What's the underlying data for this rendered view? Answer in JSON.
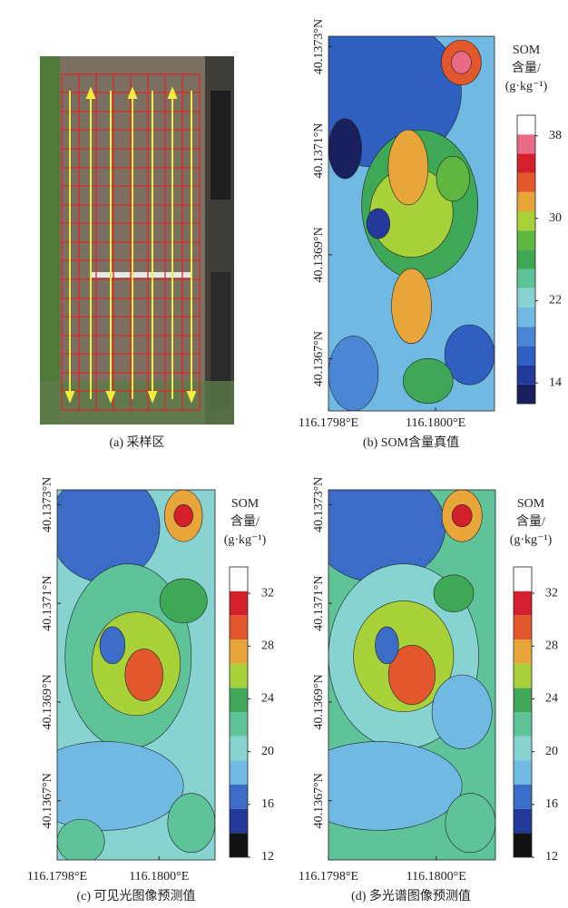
{
  "panels": {
    "a": {
      "caption": "(a) 采样区"
    },
    "b": {
      "caption": "(b) SOM含量真值",
      "xlim": [
        116.1798,
        116.18011
      ],
      "ylim": [
        40.1366,
        40.13732
      ],
      "xticks": [
        {
          "value": 116.1798,
          "label": "116.1798°E"
        },
        {
          "value": 116.18,
          "label": "116.1800°E"
        }
      ],
      "yticks": [
        {
          "value": 40.1367,
          "label": "40.1367°N"
        },
        {
          "value": 40.1369,
          "label": "40.1369°N"
        },
        {
          "value": 40.1371,
          "label": "40.1371°N"
        },
        {
          "value": 40.1373,
          "label": "40.1373°N"
        }
      ],
      "colorbar_title": [
        "SOM",
        "含量/",
        "(g·kg⁻¹)"
      ],
      "clim": [
        12,
        40
      ],
      "cticks": [
        14,
        22,
        30,
        38
      ],
      "colors": [
        "#1a1f5e",
        "#233a9a",
        "#2f5fc0",
        "#4a86d4",
        "#6fb9e2",
        "#86d3d2",
        "#5fc39a",
        "#3ea856",
        "#5fb640",
        "#a9d13a",
        "#e8a63a",
        "#e2572c",
        "#d3202c",
        "#e96b86",
        "#ffffff"
      ]
    },
    "c": {
      "caption": "(c) 可见光图像预测值",
      "xlim": [
        116.1798,
        116.18011
      ],
      "ylim": [
        40.13658,
        40.13733
      ],
      "xticks": [
        {
          "value": 116.1798,
          "label": "116.1798°E"
        },
        {
          "value": 116.18,
          "label": "116.1800°E"
        }
      ],
      "yticks": [
        {
          "value": 40.1367,
          "label": "40.1367°N"
        },
        {
          "value": 40.1369,
          "label": "40.1369°N"
        },
        {
          "value": 40.1371,
          "label": "40.1371°N"
        },
        {
          "value": 40.1373,
          "label": "40.1373°N"
        }
      ],
      "colorbar_title": [
        "SOM",
        "含量/",
        "(g·kg⁻¹)"
      ],
      "clim": [
        12,
        34
      ],
      "cticks": [
        12,
        16,
        20,
        24,
        28,
        32
      ],
      "colors": [
        "#111111",
        "#233a9a",
        "#3a6cc8",
        "#6fb9e2",
        "#86d3d2",
        "#5fc39a",
        "#3ea856",
        "#a9d13a",
        "#e8a63a",
        "#e2572c",
        "#d3202c",
        "#ffffff"
      ]
    },
    "d": {
      "caption": "(d) 多光谱图像预测值",
      "xlim": [
        116.1798,
        116.18011
      ],
      "ylim": [
        40.13658,
        40.13733
      ],
      "xticks": [
        {
          "value": 116.1798,
          "label": "116.1798°E"
        },
        {
          "value": 116.18,
          "label": "116.1800°E"
        }
      ],
      "yticks": [
        {
          "value": 40.1367,
          "label": "40.1367°N"
        },
        {
          "value": 40.1369,
          "label": "40.1369°N"
        },
        {
          "value": 40.1371,
          "label": "40.1371°N"
        },
        {
          "value": 40.1373,
          "label": "40.1373°N"
        }
      ],
      "colorbar_title": [
        "SOM",
        "含量/",
        "(g·kg⁻¹)"
      ],
      "clim": [
        12,
        34
      ],
      "cticks": [
        12,
        16,
        20,
        24,
        28,
        32
      ],
      "colors": [
        "#111111",
        "#233a9a",
        "#3a6cc8",
        "#6fb9e2",
        "#86d3d2",
        "#5fc39a",
        "#3ea856",
        "#a9d13a",
        "#e8a63a",
        "#e2572c",
        "#d3202c",
        "#ffffff"
      ]
    }
  }
}
